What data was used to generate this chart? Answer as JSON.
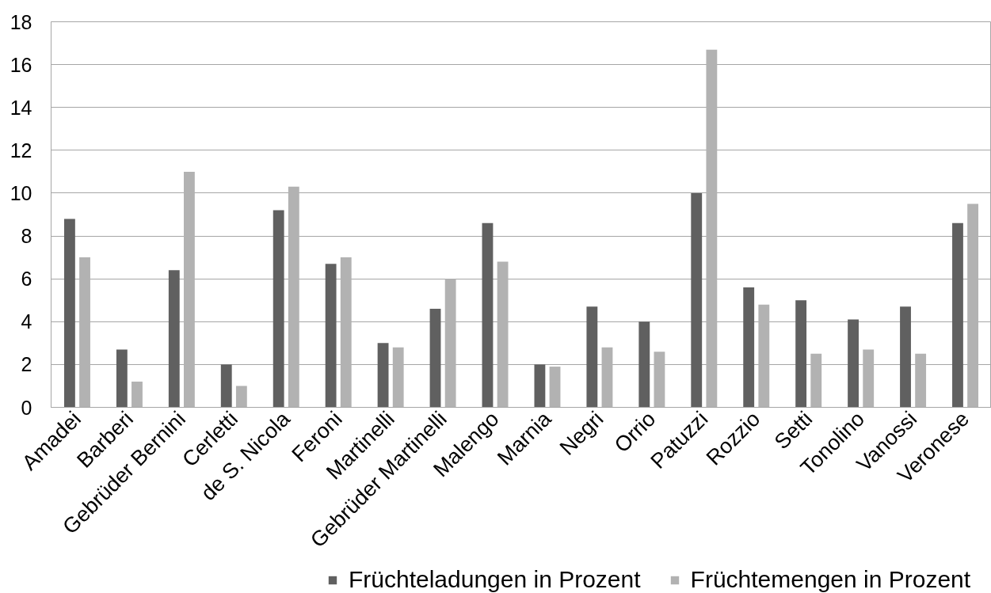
{
  "chart_data": {
    "type": "bar",
    "categories": [
      "Amadei",
      "Barberi",
      "Gebrüder Bernini",
      "Cerletti",
      "de S. Nicola",
      "Feroni",
      "Martinelli",
      "Gebrüder Martinelli",
      "Malengo",
      "Marnia",
      "Negri",
      "Orrio",
      "Patuzzi",
      "Rozzio",
      "Setti",
      "Tonolino",
      "Vanossi",
      "Veronese"
    ],
    "series": [
      {
        "name": "Früchteladungen in Prozent",
        "color": "#606060",
        "values": [
          8.8,
          2.7,
          6.4,
          2.0,
          9.2,
          6.7,
          3.0,
          4.6,
          8.6,
          2.0,
          4.7,
          4.0,
          10.0,
          5.6,
          5.0,
          4.1,
          4.7,
          8.6
        ]
      },
      {
        "name": "Früchtemengen in Prozent",
        "color": "#b2b2b2",
        "values": [
          7.0,
          1.2,
          11.0,
          1.0,
          10.3,
          7.0,
          2.8,
          6.0,
          6.8,
          1.9,
          2.8,
          2.6,
          16.7,
          4.8,
          2.5,
          2.7,
          2.5,
          9.5
        ]
      }
    ],
    "ylim": [
      0,
      18
    ],
    "yticks": [
      0,
      2,
      4,
      6,
      8,
      10,
      12,
      14,
      16,
      18
    ],
    "grid": "y",
    "legend": "bottom"
  }
}
